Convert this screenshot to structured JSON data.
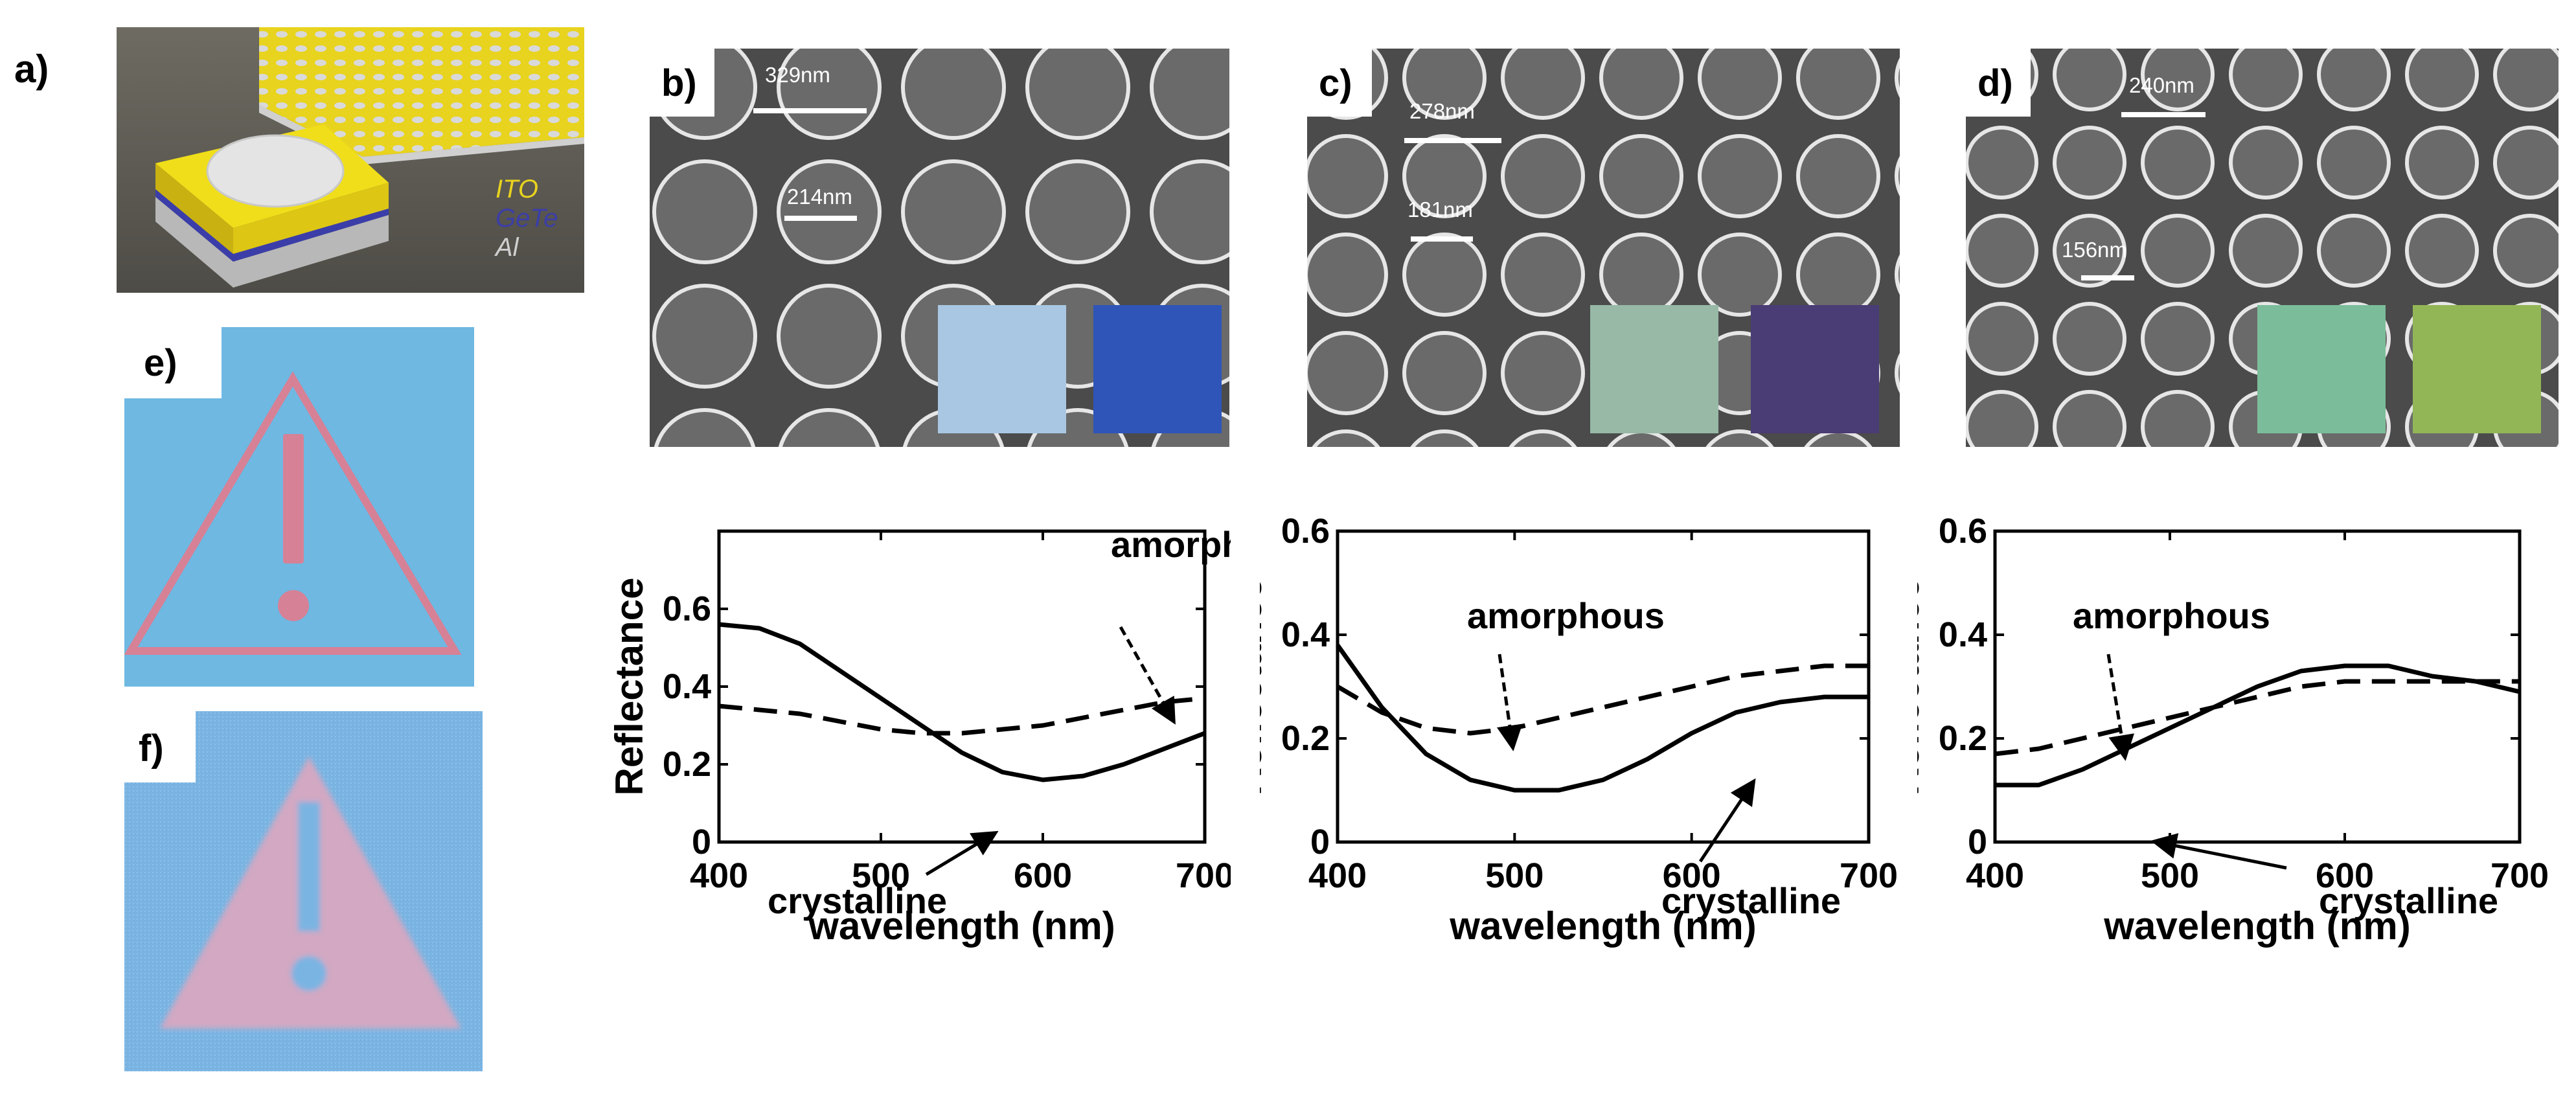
{
  "figure": {
    "panel_labels": [
      "a)",
      "b)",
      "c)",
      "d)",
      "e)",
      "f)"
    ],
    "device_layers": [
      "ITO",
      "GeTe",
      "Al"
    ],
    "sem_panels": [
      {
        "id": "b",
        "scale_labels": [
          "329nm",
          "214nm"
        ],
        "swatch_colors": [
          "#a9c7e3",
          "#2f55b8"
        ]
      },
      {
        "id": "c",
        "scale_labels": [
          "278nm",
          "181nm"
        ],
        "swatch_colors": [
          "#97b9a6",
          "#4a3c75"
        ]
      },
      {
        "id": "d",
        "scale_labels": [
          "240nm",
          "156nm"
        ],
        "swatch_colors": [
          "#7bbd9a",
          "#92b656"
        ]
      }
    ],
    "sign_colors": {
      "background": "#6eb8e2",
      "symbol": "#d68196",
      "photo_background": "#7ab4e2",
      "photo_symbol": "#d2a8c2"
    }
  },
  "chart_data": [
    {
      "type": "line",
      "panel": "b",
      "xlabel": "wavelength (nm)",
      "ylabel": "Reflectance",
      "xlim": [
        400,
        700
      ],
      "ylim": [
        0,
        0.8
      ],
      "xticks": [
        400,
        500,
        600,
        700
      ],
      "yticks": [
        0,
        0.2,
        0.4,
        0.6
      ],
      "xtick_labels": [
        "400",
        "500",
        "600",
        "700"
      ],
      "ytick_labels": [
        "0",
        "0.2",
        "0.4",
        "0.6"
      ],
      "annotations": [
        "amorphous",
        "crystalline"
      ],
      "series": [
        {
          "name": "crystalline",
          "style": "solid",
          "x": [
            400,
            425,
            450,
            475,
            500,
            525,
            550,
            575,
            600,
            625,
            650,
            675,
            700
          ],
          "y": [
            0.56,
            0.55,
            0.51,
            0.44,
            0.37,
            0.3,
            0.23,
            0.18,
            0.16,
            0.17,
            0.2,
            0.24,
            0.28
          ]
        },
        {
          "name": "amorphous",
          "style": "dashed",
          "x": [
            400,
            425,
            450,
            475,
            500,
            525,
            550,
            575,
            600,
            625,
            650,
            675,
            700
          ],
          "y": [
            0.35,
            0.34,
            0.33,
            0.31,
            0.29,
            0.28,
            0.28,
            0.29,
            0.3,
            0.32,
            0.34,
            0.36,
            0.37
          ]
        }
      ]
    },
    {
      "type": "line",
      "panel": "c",
      "xlabel": "wavelength (nm)",
      "ylabel": "Reflectance",
      "xlim": [
        400,
        700
      ],
      "ylim": [
        0,
        0.6
      ],
      "xticks": [
        400,
        500,
        600,
        700
      ],
      "yticks": [
        0,
        0.2,
        0.4,
        0.6
      ],
      "xtick_labels": [
        "400",
        "500",
        "600",
        "700"
      ],
      "ytick_labels": [
        "0",
        "0.2",
        "0.4",
        "0.6"
      ],
      "annotations": [
        "amorphous",
        "crystalline"
      ],
      "series": [
        {
          "name": "crystalline",
          "style": "solid",
          "x": [
            400,
            425,
            450,
            475,
            500,
            525,
            550,
            575,
            600,
            625,
            650,
            675,
            700
          ],
          "y": [
            0.38,
            0.26,
            0.17,
            0.12,
            0.1,
            0.1,
            0.12,
            0.16,
            0.21,
            0.25,
            0.27,
            0.28,
            0.28
          ]
        },
        {
          "name": "amorphous",
          "style": "dashed",
          "x": [
            400,
            425,
            450,
            475,
            500,
            525,
            550,
            575,
            600,
            625,
            650,
            675,
            700
          ],
          "y": [
            0.3,
            0.25,
            0.22,
            0.21,
            0.22,
            0.24,
            0.26,
            0.28,
            0.3,
            0.32,
            0.33,
            0.34,
            0.34
          ]
        }
      ]
    },
    {
      "type": "line",
      "panel": "d",
      "xlabel": "wavelength (nm)",
      "ylabel": "Reflectance",
      "xlim": [
        400,
        700
      ],
      "ylim": [
        0,
        0.6
      ],
      "xticks": [
        400,
        500,
        600,
        700
      ],
      "yticks": [
        0,
        0.2,
        0.4,
        0.6
      ],
      "xtick_labels": [
        "400",
        "500",
        "600",
        "700"
      ],
      "ytick_labels": [
        "0",
        "0.2",
        "0.4",
        "0.6"
      ],
      "annotations": [
        "amorphous",
        "crystalline"
      ],
      "series": [
        {
          "name": "crystalline",
          "style": "solid",
          "x": [
            400,
            425,
            450,
            475,
            500,
            525,
            550,
            575,
            600,
            625,
            650,
            675,
            700
          ],
          "y": [
            0.11,
            0.11,
            0.14,
            0.18,
            0.22,
            0.26,
            0.3,
            0.33,
            0.34,
            0.34,
            0.32,
            0.31,
            0.29
          ]
        },
        {
          "name": "amorphous",
          "style": "dashed",
          "x": [
            400,
            425,
            450,
            475,
            500,
            525,
            550,
            575,
            600,
            625,
            650,
            675,
            700
          ],
          "y": [
            0.17,
            0.18,
            0.2,
            0.22,
            0.24,
            0.26,
            0.28,
            0.3,
            0.31,
            0.31,
            0.31,
            0.31,
            0.31
          ]
        }
      ]
    }
  ]
}
